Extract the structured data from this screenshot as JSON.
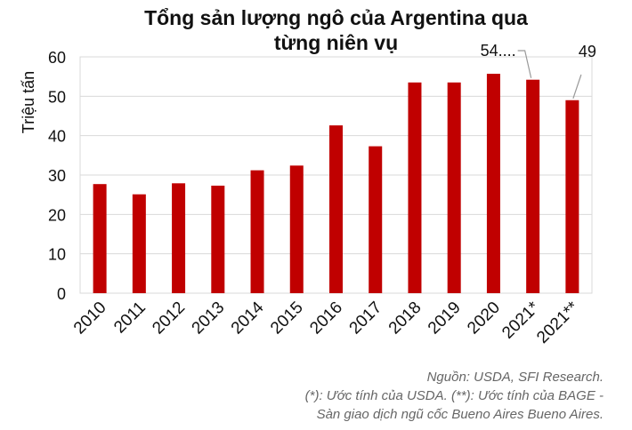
{
  "title_line1": "Tổng sản lượng ngô của Argentina qua",
  "title_line2": "từng niên vụ",
  "chart_data": {
    "type": "bar",
    "categories": [
      "2010",
      "2011",
      "2012",
      "2013",
      "2014",
      "2015",
      "2016",
      "2017",
      "2018",
      "2019",
      "2020",
      "2021*",
      "2021**"
    ],
    "values": [
      27.7,
      25.1,
      27.9,
      27.3,
      31.2,
      32.4,
      42.6,
      37.3,
      53.5,
      53.5,
      55.7,
      54.2,
      49.0
    ],
    "ylabel": "Triệu tấn",
    "ylim": [
      0,
      60
    ],
    "yticks": [
      0,
      10,
      20,
      30,
      40,
      50,
      60
    ],
    "grid": true,
    "bar_color": "#c00000",
    "data_labels": [
      {
        "category": "2021*",
        "text": "54...."
      },
      {
        "category": "2021**",
        "text": "49"
      }
    ]
  },
  "footer": {
    "line1": "Nguồn: USDA, SFI Research.",
    "line2": "(*): Ước tính của USDA. (**): Ước tính của BAGE -",
    "line3": "Sàn giao dịch ngũ cốc Bueno Aires Bueno Aires."
  }
}
